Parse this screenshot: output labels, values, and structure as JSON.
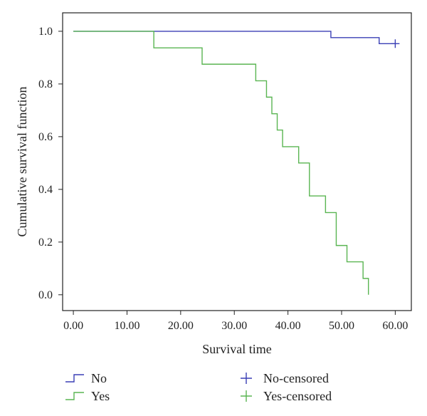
{
  "chart_data": {
    "type": "line",
    "title": "",
    "xlabel": "Survival time",
    "ylabel": "Cumulative survival function",
    "xlim": [
      -2,
      63
    ],
    "ylim": [
      -0.06,
      1.07
    ],
    "x_ticks": [
      0,
      10,
      20,
      30,
      40,
      50,
      60
    ],
    "x_tick_labels": [
      "0.00",
      "10.00",
      "20.00",
      "30.00",
      "40.00",
      "50.00",
      "60.00"
    ],
    "y_ticks": [
      0.0,
      0.2,
      0.4,
      0.6,
      0.8,
      1.0
    ],
    "y_tick_labels": [
      "0.0",
      "0.2",
      "0.4",
      "0.6",
      "0.8",
      "1.0"
    ],
    "grid": false,
    "legend_position": "bottom",
    "series": [
      {
        "name": "No",
        "color": "#3a3fb5",
        "step": true,
        "x": [
          0,
          48,
          57,
          60
        ],
        "y": [
          1.0,
          0.976,
          0.953,
          0.953
        ],
        "censored_name": "No-censored",
        "censored": [
          {
            "x": 60,
            "y": 0.953
          }
        ]
      },
      {
        "name": "Yes",
        "color": "#5ab552",
        "step": true,
        "x": [
          0,
          15,
          24,
          34,
          36,
          37,
          38,
          39,
          42,
          44,
          47,
          49,
          51,
          54,
          55,
          55
        ],
        "y": [
          1.0,
          0.937,
          0.875,
          0.812,
          0.75,
          0.687,
          0.625,
          0.562,
          0.5,
          0.375,
          0.312,
          0.187,
          0.125,
          0.062,
          0.062,
          0.0
        ],
        "censored_name": "Yes-censored",
        "censored": []
      }
    ]
  }
}
